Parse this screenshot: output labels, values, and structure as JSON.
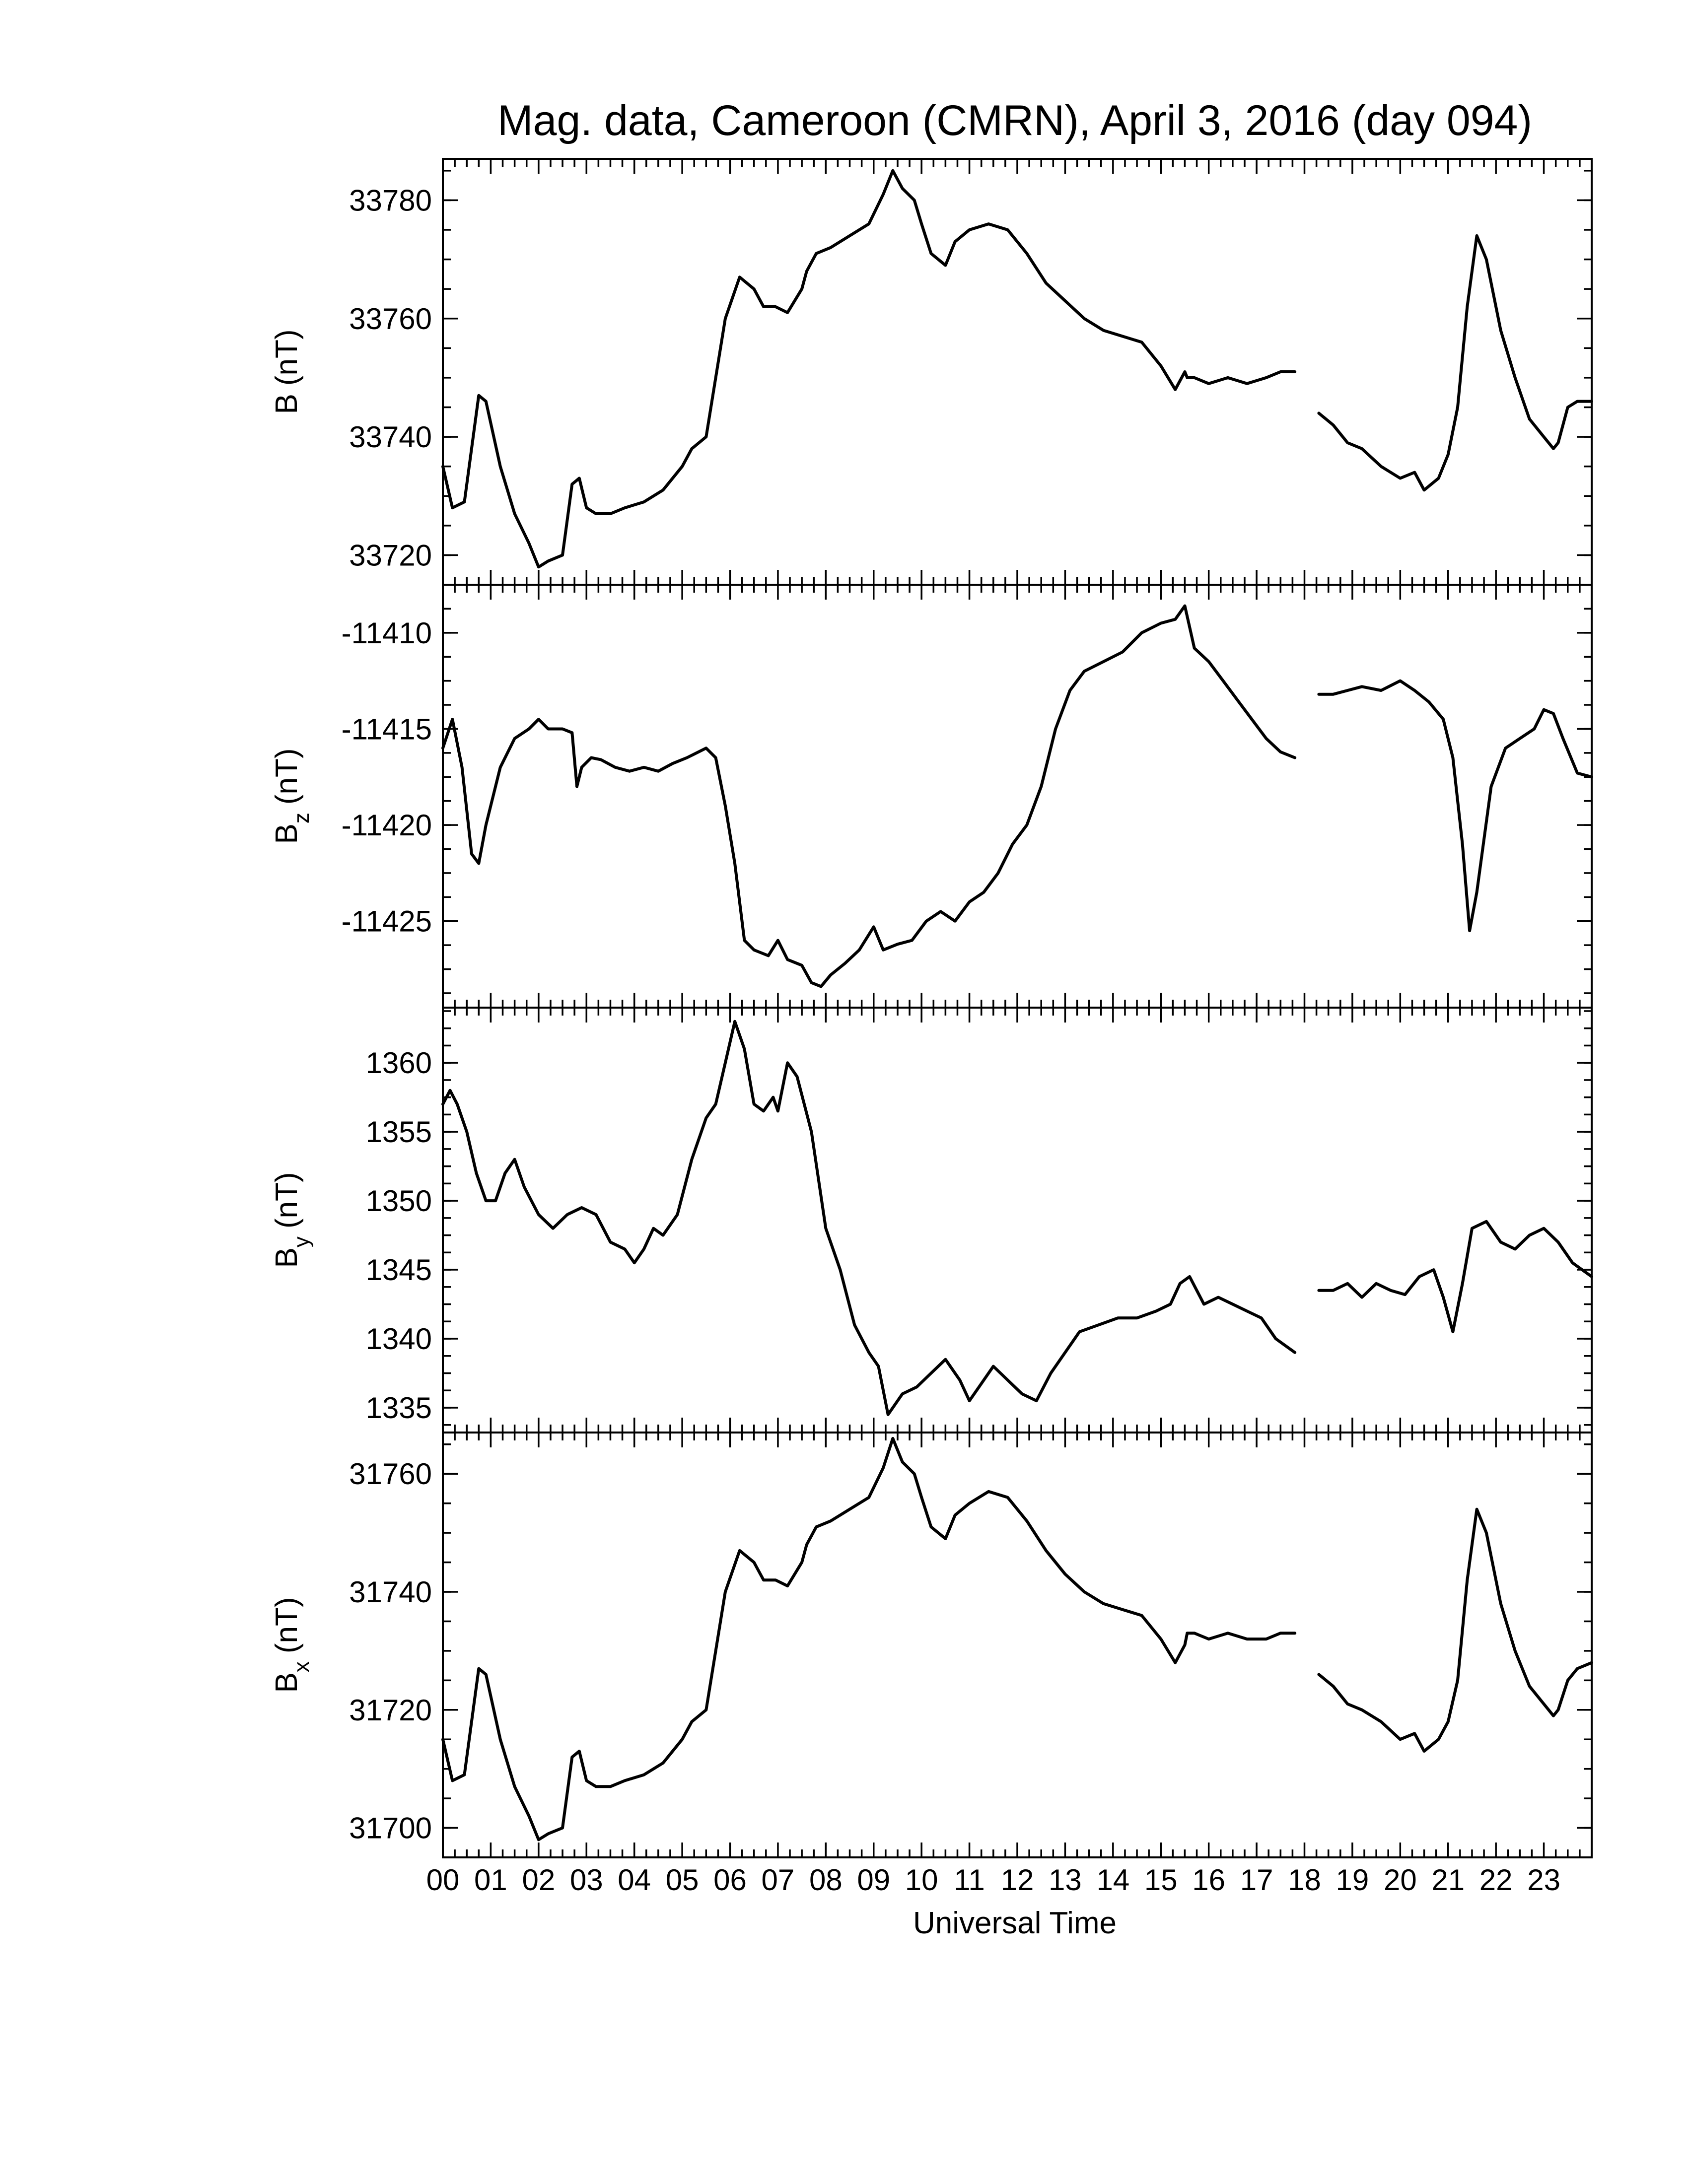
{
  "chart_data": {
    "type": "line",
    "title": "Mag. data, Cameroon (CMRN), April 3, 2016 (day 094)",
    "xlabel": "Universal Time",
    "xlim": [
      0,
      24
    ],
    "x_tick_labels": [
      "00",
      "01",
      "02",
      "03",
      "04",
      "05",
      "06",
      "07",
      "08",
      "09",
      "10",
      "11",
      "12",
      "13",
      "14",
      "15",
      "16",
      "17",
      "18",
      "19",
      "20",
      "21",
      "22",
      "23"
    ],
    "data_gap_hours": [
      17.8,
      18.0
    ],
    "panels": [
      {
        "id": "B",
        "ylabel_main": "B",
        "ylabel_sub": "",
        "ylabel_unit": "(nT)",
        "ylim": [
          33715,
          33787
        ],
        "yticks": [
          33720,
          33740,
          33760,
          33780
        ],
        "yticks_text": [
          "33720",
          "33740",
          "33760",
          "33780"
        ],
        "series": {
          "x": [
            0,
            0.2,
            0.45,
            0.75,
            0.9,
            1.2,
            1.5,
            1.8,
            2.0,
            2.2,
            2.5,
            2.7,
            2.85,
            3.0,
            3.2,
            3.5,
            3.8,
            4.2,
            4.6,
            5.0,
            5.2,
            5.5,
            5.7,
            5.9,
            6.2,
            6.5,
            6.7,
            6.95,
            7.2,
            7.5,
            7.6,
            7.8,
            8.1,
            8.5,
            8.9,
            9.2,
            9.4,
            9.6,
            9.85,
            10.0,
            10.2,
            10.5,
            10.7,
            11.0,
            11.4,
            11.8,
            12.2,
            12.6,
            13.0,
            13.4,
            13.8,
            14.2,
            14.6,
            15.0,
            15.3,
            15.5,
            15.55,
            15.7,
            16.0,
            16.4,
            16.8,
            17.2,
            17.5,
            17.8,
            18.0,
            18.3,
            18.6,
            18.9,
            19.2,
            19.6,
            20.0,
            20.3,
            20.5,
            20.8,
            21.0,
            21.2,
            21.4,
            21.6,
            21.8,
            22.1,
            22.4,
            22.7,
            23.0,
            23.2,
            23.3,
            23.5,
            23.7,
            24.0
          ],
          "y": [
            33735,
            33728,
            33729,
            33747,
            33746,
            33735,
            33727,
            33722,
            33718,
            33719,
            33720,
            33732,
            33733,
            33728,
            33727,
            33727,
            33728,
            33729,
            33731,
            33735,
            33738,
            33740,
            33750,
            33760,
            33767,
            33765,
            33762,
            33762,
            33761,
            33765,
            33768,
            33771,
            33772,
            33774,
            33776,
            33781,
            33785,
            33782,
            33780,
            33776,
            33771,
            33769,
            33773,
            33775,
            33776,
            33775,
            33771,
            33766,
            33763,
            33760,
            33758,
            33757,
            33756,
            33752,
            33748,
            33751,
            33750,
            33750,
            33749,
            33750,
            33749,
            33750,
            33751,
            33751,
            null,
            33744,
            33742,
            33739,
            33738,
            33735,
            33733,
            33734,
            33731,
            33733,
            33737,
            33745,
            33762,
            33774,
            33770,
            33758,
            33750,
            33743,
            33740,
            33738,
            33739,
            33745,
            33746,
            33746
          ]
        }
      },
      {
        "id": "Bz",
        "ylabel_main": "B",
        "ylabel_sub": "z",
        "ylabel_unit": "(nT)",
        "ylim": [
          -11429.5,
          -11407.5
        ],
        "yticks": [
          -11410,
          -11415,
          -11420,
          -11425
        ],
        "yticks_text": [
          "-11410",
          "-11415",
          "-11420",
          "-11425"
        ],
        "series": {
          "x": [
            0,
            0.2,
            0.4,
            0.6,
            0.75,
            0.9,
            1.2,
            1.5,
            1.8,
            2.0,
            2.2,
            2.5,
            2.7,
            2.8,
            2.9,
            3.1,
            3.3,
            3.6,
            3.9,
            4.2,
            4.5,
            4.8,
            5.1,
            5.5,
            5.7,
            5.9,
            6.1,
            6.3,
            6.5,
            6.8,
            7.0,
            7.2,
            7.5,
            7.7,
            7.9,
            8.1,
            8.4,
            8.7,
            9.0,
            9.2,
            9.5,
            9.8,
            10.1,
            10.4,
            10.7,
            11.0,
            11.3,
            11.6,
            11.9,
            12.2,
            12.5,
            12.8,
            13.1,
            13.4,
            13.8,
            14.2,
            14.6,
            15.0,
            15.3,
            15.5,
            15.7,
            16.0,
            16.3,
            16.6,
            16.9,
            17.2,
            17.5,
            17.8,
            18.0,
            18.3,
            18.6,
            18.9,
            19.2,
            19.6,
            20.0,
            20.3,
            20.6,
            20.9,
            21.1,
            21.3,
            21.45,
            21.6,
            21.9,
            22.2,
            22.5,
            22.8,
            23.0,
            23.2,
            23.4,
            23.7,
            24.0
          ],
          "y": [
            -11416,
            -11414.5,
            -11417,
            -11421.5,
            -11422,
            -11420,
            -11417,
            -11415.5,
            -11415,
            -11414.5,
            -11415,
            -11415,
            -11415.2,
            -11418,
            -11417,
            -11416.5,
            -11416.6,
            -11417,
            -11417.2,
            -11417,
            -11417.2,
            -11416.8,
            -11416.5,
            -11416,
            -11416.5,
            -11419,
            -11422,
            -11426,
            -11426.5,
            -11426.8,
            -11426,
            -11427,
            -11427.3,
            -11428.2,
            -11428.4,
            -11427.8,
            -11427.2,
            -11426.5,
            -11425.3,
            -11426.5,
            -11426.2,
            -11426,
            -11425,
            -11424.5,
            -11425,
            -11424,
            -11423.5,
            -11422.5,
            -11421,
            -11420,
            -11418,
            -11415,
            -11413,
            -11412,
            -11411.5,
            -11411,
            -11410,
            -11409.5,
            -11409.3,
            -11408.6,
            -11410.8,
            -11411.5,
            -11412.5,
            -11413.5,
            -11414.5,
            -11415.5,
            -11416.2,
            -11416.5,
            null,
            -11413.2,
            -11413.2,
            -11413,
            -11412.8,
            -11413,
            -11412.5,
            -11413,
            -11413.6,
            -11414.5,
            -11416.5,
            -11421,
            -11425.5,
            -11423.5,
            -11418,
            -11416,
            -11415.5,
            -11415,
            -11414,
            -11414.2,
            -11415.5,
            -11417.3,
            -11417.5
          ]
        }
      },
      {
        "id": "By",
        "ylabel_main": "B",
        "ylabel_sub": "y",
        "ylabel_unit": "(nT)",
        "ylim": [
          1333.2,
          1364.0
        ],
        "yticks": [
          1335,
          1340,
          1345,
          1350,
          1355,
          1360
        ],
        "yticks_text": [
          "1335",
          "1340",
          "1345",
          "1350",
          "1355",
          "1360"
        ],
        "series": {
          "x": [
            0,
            0.15,
            0.3,
            0.5,
            0.7,
            0.9,
            1.1,
            1.3,
            1.5,
            1.7,
            2.0,
            2.3,
            2.6,
            2.9,
            3.2,
            3.5,
            3.8,
            4.0,
            4.2,
            4.4,
            4.6,
            4.9,
            5.2,
            5.5,
            5.7,
            5.9,
            6.1,
            6.3,
            6.5,
            6.7,
            6.9,
            7.0,
            7.2,
            7.4,
            7.7,
            8.0,
            8.3,
            8.6,
            8.9,
            9.1,
            9.3,
            9.6,
            9.9,
            10.2,
            10.5,
            10.8,
            11.0,
            11.2,
            11.5,
            11.8,
            12.1,
            12.4,
            12.7,
            13.0,
            13.3,
            13.7,
            14.1,
            14.5,
            14.9,
            15.2,
            15.4,
            15.6,
            15.9,
            16.2,
            16.5,
            16.8,
            17.1,
            17.4,
            17.6,
            17.8,
            18.0,
            18.3,
            18.6,
            18.9,
            19.2,
            19.5,
            19.8,
            20.1,
            20.4,
            20.7,
            20.9,
            21.1,
            21.3,
            21.5,
            21.8,
            22.1,
            22.4,
            22.7,
            23.0,
            23.3,
            23.6,
            24.0
          ],
          "y": [
            1357,
            1358,
            1357,
            1355,
            1352,
            1350,
            1350,
            1352,
            1353,
            1351,
            1349,
            1348,
            1349,
            1349.5,
            1349,
            1347,
            1346.5,
            1345.5,
            1346.5,
            1348,
            1347.5,
            1349,
            1353,
            1356,
            1357,
            1360,
            1363,
            1361,
            1357,
            1356.5,
            1357.5,
            1356.5,
            1360,
            1359,
            1355,
            1348,
            1345,
            1341,
            1339,
            1338,
            1334.5,
            1336,
            1336.5,
            1337.5,
            1338.5,
            1337,
            1335.5,
            1336.5,
            1338,
            1337,
            1336,
            1335.5,
            1337.5,
            1339,
            1340.5,
            1341,
            1341.5,
            1341.5,
            1342,
            1342.5,
            1344,
            1344.5,
            1342.5,
            1343,
            1342.5,
            1342,
            1341.5,
            1340,
            1339.5,
            1339,
            null,
            1343.5,
            1343.5,
            1344,
            1343,
            1344,
            1343.5,
            1343.2,
            1344.5,
            1345,
            1343,
            1340.5,
            1344,
            1348,
            1348.5,
            1347,
            1346.5,
            1347.5,
            1348,
            1347,
            1345.5,
            1344.5
          ]
        }
      },
      {
        "id": "Bx",
        "ylabel_main": "B",
        "ylabel_sub": "x",
        "ylabel_unit": "(nT)",
        "ylim": [
          31695,
          31767
        ],
        "yticks": [
          31700,
          31720,
          31740,
          31760
        ],
        "yticks_text": [
          "31700",
          "31720",
          "31740",
          "31760"
        ],
        "series": {
          "x": [
            0,
            0.2,
            0.45,
            0.75,
            0.9,
            1.2,
            1.5,
            1.8,
            2.0,
            2.2,
            2.5,
            2.7,
            2.85,
            3.0,
            3.2,
            3.5,
            3.8,
            4.2,
            4.6,
            5.0,
            5.2,
            5.5,
            5.7,
            5.9,
            6.2,
            6.5,
            6.7,
            6.95,
            7.2,
            7.5,
            7.6,
            7.8,
            8.1,
            8.5,
            8.9,
            9.2,
            9.4,
            9.6,
            9.85,
            10.0,
            10.2,
            10.5,
            10.7,
            11.0,
            11.4,
            11.8,
            12.2,
            12.6,
            13.0,
            13.4,
            13.8,
            14.2,
            14.6,
            15.0,
            15.3,
            15.5,
            15.55,
            15.7,
            16.0,
            16.4,
            16.8,
            17.2,
            17.5,
            17.8,
            18.0,
            18.3,
            18.6,
            18.9,
            19.2,
            19.6,
            20.0,
            20.3,
            20.5,
            20.8,
            21.0,
            21.2,
            21.4,
            21.6,
            21.8,
            22.1,
            22.4,
            22.7,
            23.0,
            23.2,
            23.3,
            23.5,
            23.7,
            24.0
          ],
          "y": [
            31715,
            31708,
            31709,
            31727,
            31726,
            31715,
            31707,
            31702,
            31698,
            31699,
            31700,
            31712,
            31713,
            31708,
            31707,
            31707,
            31708,
            31709,
            31711,
            31715,
            31718,
            31720,
            31730,
            31740,
            31747,
            31745,
            31742,
            31742,
            31741,
            31745,
            31748,
            31751,
            31752,
            31754,
            31756,
            31761,
            31766,
            31762,
            31760,
            31756,
            31751,
            31749,
            31753,
            31755,
            31757,
            31756,
            31752,
            31747,
            31743,
            31740,
            31738,
            31737,
            31736,
            31732,
            31728,
            31731,
            31733,
            31733,
            31732,
            31733,
            31732,
            31732,
            31733,
            31733,
            null,
            31726,
            31724,
            31721,
            31720,
            31718,
            31715,
            31716,
            31713,
            31715,
            31718,
            31725,
            31742,
            31754,
            31750,
            31738,
            31730,
            31724,
            31721,
            31719,
            31720,
            31725,
            31727,
            31728
          ]
        }
      }
    ]
  }
}
